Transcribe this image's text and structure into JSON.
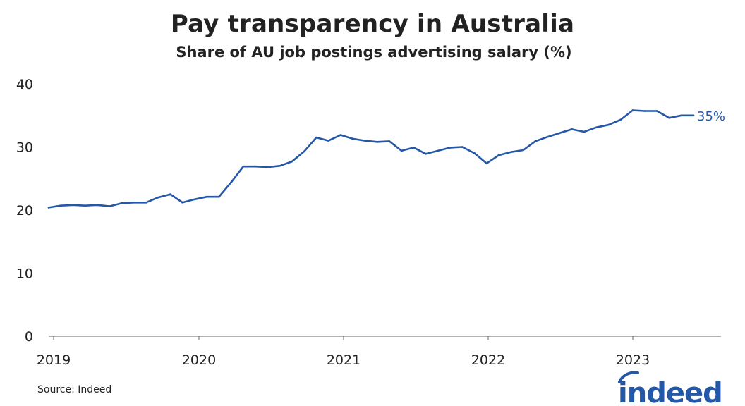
{
  "chart_data": {
    "type": "line",
    "title": "Pay transparency in Australia",
    "subtitle": "Share of AU job postings advertising salary (%)",
    "xlabel": "",
    "ylabel": "",
    "x_tick_labels": [
      "2019",
      "2020",
      "2021",
      "2022",
      "2023"
    ],
    "y_tick_labels": [
      "0",
      "10",
      "20",
      "30",
      "40"
    ],
    "ylim": [
      0,
      40
    ],
    "grid": false,
    "series": [
      {
        "color": "#2557a7",
        "end_label": "35%",
        "x": [
          "2019-01",
          "2019-02",
          "2019-03",
          "2019-04",
          "2019-05",
          "2019-06",
          "2019-07",
          "2019-08",
          "2019-09",
          "2019-10",
          "2019-11",
          "2019-12",
          "2020-01",
          "2020-02",
          "2020-03",
          "2020-04",
          "2020-05",
          "2020-06",
          "2020-07",
          "2020-08",
          "2020-09",
          "2020-10",
          "2020-11",
          "2020-12",
          "2021-01",
          "2021-02",
          "2021-03",
          "2021-04",
          "2021-05",
          "2021-06",
          "2021-07",
          "2021-08",
          "2021-09",
          "2021-10",
          "2021-11",
          "2021-12",
          "2022-01",
          "2022-02",
          "2022-03",
          "2022-04",
          "2022-05",
          "2022-06",
          "2022-07",
          "2022-08",
          "2022-09",
          "2022-10",
          "2022-11",
          "2022-12",
          "2023-01",
          "2023-02",
          "2023-03",
          "2023-04",
          "2023-05",
          "2023-06"
        ],
        "values": [
          20.4,
          20.7,
          20.8,
          20.7,
          20.8,
          20.6,
          21.1,
          21.2,
          21.2,
          22.0,
          22.5,
          21.2,
          21.7,
          22.1,
          22.1,
          24.4,
          26.9,
          26.9,
          26.8,
          27.0,
          27.7,
          29.3,
          31.5,
          31.0,
          31.9,
          31.3,
          31.0,
          30.8,
          30.9,
          29.4,
          29.9,
          28.9,
          29.4,
          29.9,
          30.0,
          29.0,
          27.4,
          28.7,
          29.2,
          29.5,
          30.9,
          31.6,
          32.2,
          32.8,
          32.4,
          33.1,
          33.5,
          34.3,
          35.8,
          35.7,
          35.7,
          34.6,
          35.0,
          35.0
        ]
      }
    ]
  },
  "footer": {
    "source": "Source: Indeed",
    "logo_text": "indeed",
    "logo_color": "#2557a7"
  }
}
